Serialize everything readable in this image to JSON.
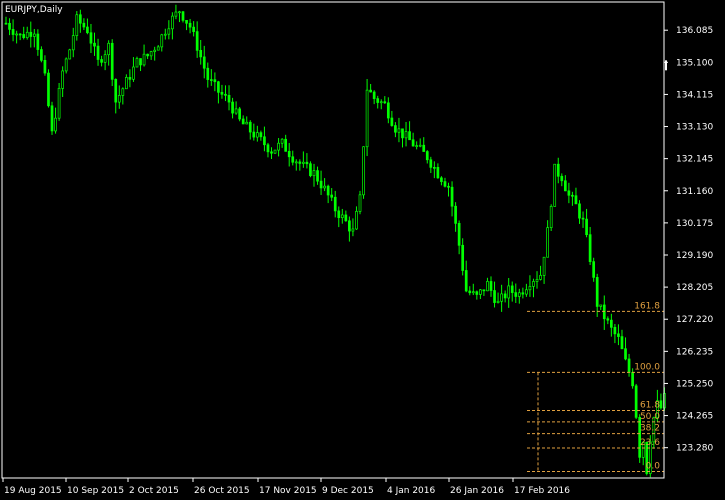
{
  "chart_data": {
    "type": "candlestick",
    "symbol_label": "EURJPY,Daily",
    "y_ticks": [
      136.085,
      135.1,
      134.115,
      133.13,
      132.145,
      131.16,
      130.175,
      129.19,
      128.205,
      127.22,
      126.235,
      125.25,
      124.265,
      123.28
    ],
    "y_tick_labels": [
      "136.085",
      "135.100",
      "134.115",
      "133.130",
      "132.145",
      "131.160",
      "130.175",
      "129.190",
      "128.205",
      "127.220",
      "126.235",
      "125.250",
      "124.265",
      "123.280"
    ],
    "ylim": [
      122.35,
      136.95
    ],
    "x_labels": [
      "19 Aug 2015",
      "10 Sep 2015",
      "2 Oct 2015",
      "26 Oct 2015",
      "17 Nov 2015",
      "9 Dec 2015",
      "4 Jan 2016",
      "26 Jan 2016",
      "17 Feb 2016"
    ],
    "bar_count": 187,
    "close_path": [
      [
        0,
        136.3
      ],
      [
        4,
        135.9
      ],
      [
        8,
        136.1
      ],
      [
        11,
        134.6
      ],
      [
        13,
        132.9
      ],
      [
        16,
        134.8
      ],
      [
        18,
        135.5
      ],
      [
        20,
        136.4
      ],
      [
        23,
        136.1
      ],
      [
        26,
        135.1
      ],
      [
        29,
        135.6
      ],
      [
        31,
        133.9
      ],
      [
        34,
        134.5
      ],
      [
        37,
        135.1
      ],
      [
        40,
        135.3
      ],
      [
        43,
        135.7
      ],
      [
        46,
        136.3
      ],
      [
        49,
        136.7
      ],
      [
        52,
        136.2
      ],
      [
        54,
        135.6
      ],
      [
        57,
        134.6
      ],
      [
        60,
        134.2
      ],
      [
        63,
        133.9
      ],
      [
        66,
        133.3
      ],
      [
        69,
        133.0
      ],
      [
        72,
        132.7
      ],
      [
        75,
        132.4
      ],
      [
        78,
        132.6
      ],
      [
        81,
        132.2
      ],
      [
        84,
        131.9
      ],
      [
        87,
        131.7
      ],
      [
        90,
        131.2
      ],
      [
        93,
        130.6
      ],
      [
        96,
        130.2
      ],
      [
        98,
        129.9
      ],
      [
        100,
        130.9
      ],
      [
        102,
        134.3
      ],
      [
        104,
        134.0
      ],
      [
        107,
        133.8
      ],
      [
        110,
        133.1
      ],
      [
        113,
        132.8
      ],
      [
        116,
        132.5
      ],
      [
        119,
        132.2
      ],
      [
        122,
        131.7
      ],
      [
        125,
        131.3
      ],
      [
        128,
        129.5
      ],
      [
        130,
        128.1
      ],
      [
        133,
        127.9
      ],
      [
        136,
        128.3
      ],
      [
        139,
        127.7
      ],
      [
        142,
        128.1
      ],
      [
        145,
        128.0
      ],
      [
        148,
        128.4
      ],
      [
        151,
        128.6
      ],
      [
        153,
        129.9
      ],
      [
        155,
        131.8
      ],
      [
        157,
        131.6
      ],
      [
        159,
        131.0
      ],
      [
        161,
        130.7
      ],
      [
        163,
        130.2
      ],
      [
        165,
        129.1
      ],
      [
        167,
        127.7
      ],
      [
        169,
        127.3
      ],
      [
        171,
        126.9
      ],
      [
        173,
        126.6
      ],
      [
        175,
        125.9
      ],
      [
        177,
        125.3
      ],
      [
        178,
        124.3
      ],
      [
        179,
        123.1
      ],
      [
        180,
        123.5
      ],
      [
        181,
        122.6
      ],
      [
        182,
        123.6
      ],
      [
        183,
        124.2
      ],
      [
        184,
        124.6
      ],
      [
        185,
        124.5
      ],
      [
        186,
        124.8
      ]
    ],
    "fibonacci_levels": [
      {
        "label": "161.8",
        "value": 127.46
      },
      {
        "label": "100.0",
        "value": 125.59
      },
      {
        "label": "61.8",
        "value": 124.42
      },
      {
        "label": "50.0",
        "value": 124.07
      },
      {
        "label": "38.2",
        "value": 123.71
      },
      {
        "label": "23.6",
        "value": 123.27
      },
      {
        "label": "0.0",
        "value": 122.55
      }
    ],
    "colors": {
      "background": "#000000",
      "candles": "#00ff00",
      "axis": "#ffffff",
      "fibonacci": "#e0a040",
      "text": "#ffffff"
    }
  }
}
